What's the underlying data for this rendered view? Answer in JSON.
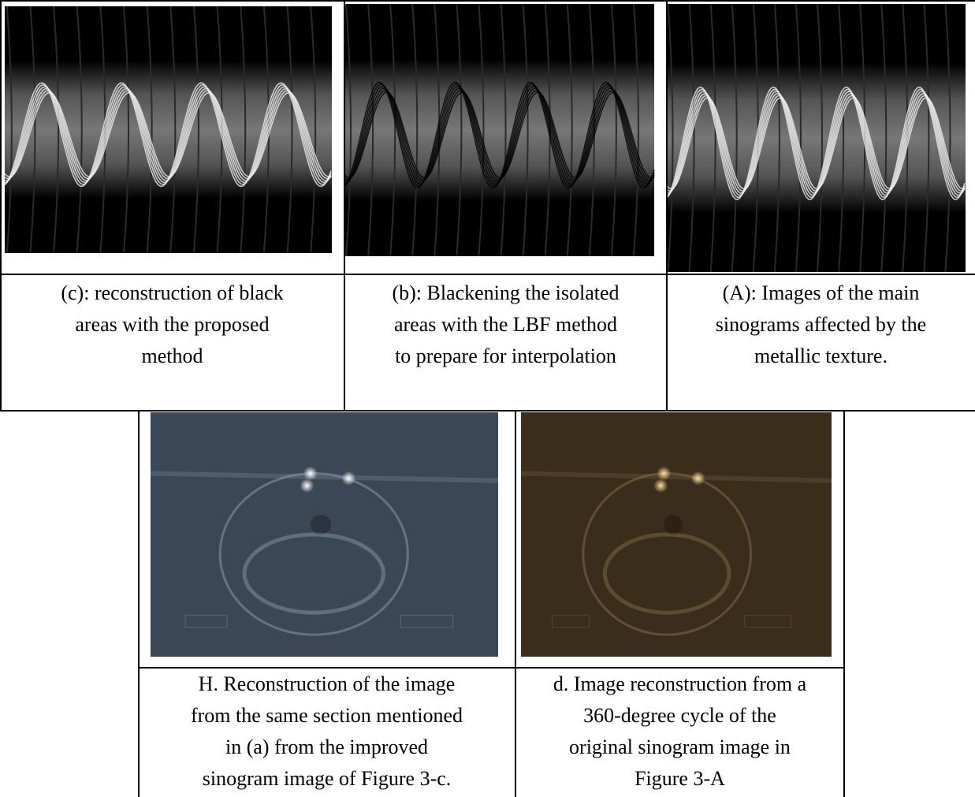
{
  "top_row": [
    {
      "caption": [
        "(c): reconstruction of black",
        "areas with the proposed",
        "method"
      ]
    },
    {
      "caption": [
        "(b): Blackening the isolated",
        "areas with the LBF method",
        "to prepare for interpolation"
      ]
    },
    {
      "caption": [
        "(A): Images of the main",
        "sinograms affected by the",
        "metallic texture."
      ]
    }
  ],
  "bottom_row": [
    {
      "caption": [
        "H. Reconstruction of the image",
        "from the same section mentioned",
        "in (a) from the improved",
        "sinogram image of Figure 3-c."
      ]
    },
    {
      "caption": [
        "d. Image reconstruction from a",
        "360-degree cycle of the",
        "original sinogram image in",
        "Figure 3-A"
      ]
    }
  ]
}
